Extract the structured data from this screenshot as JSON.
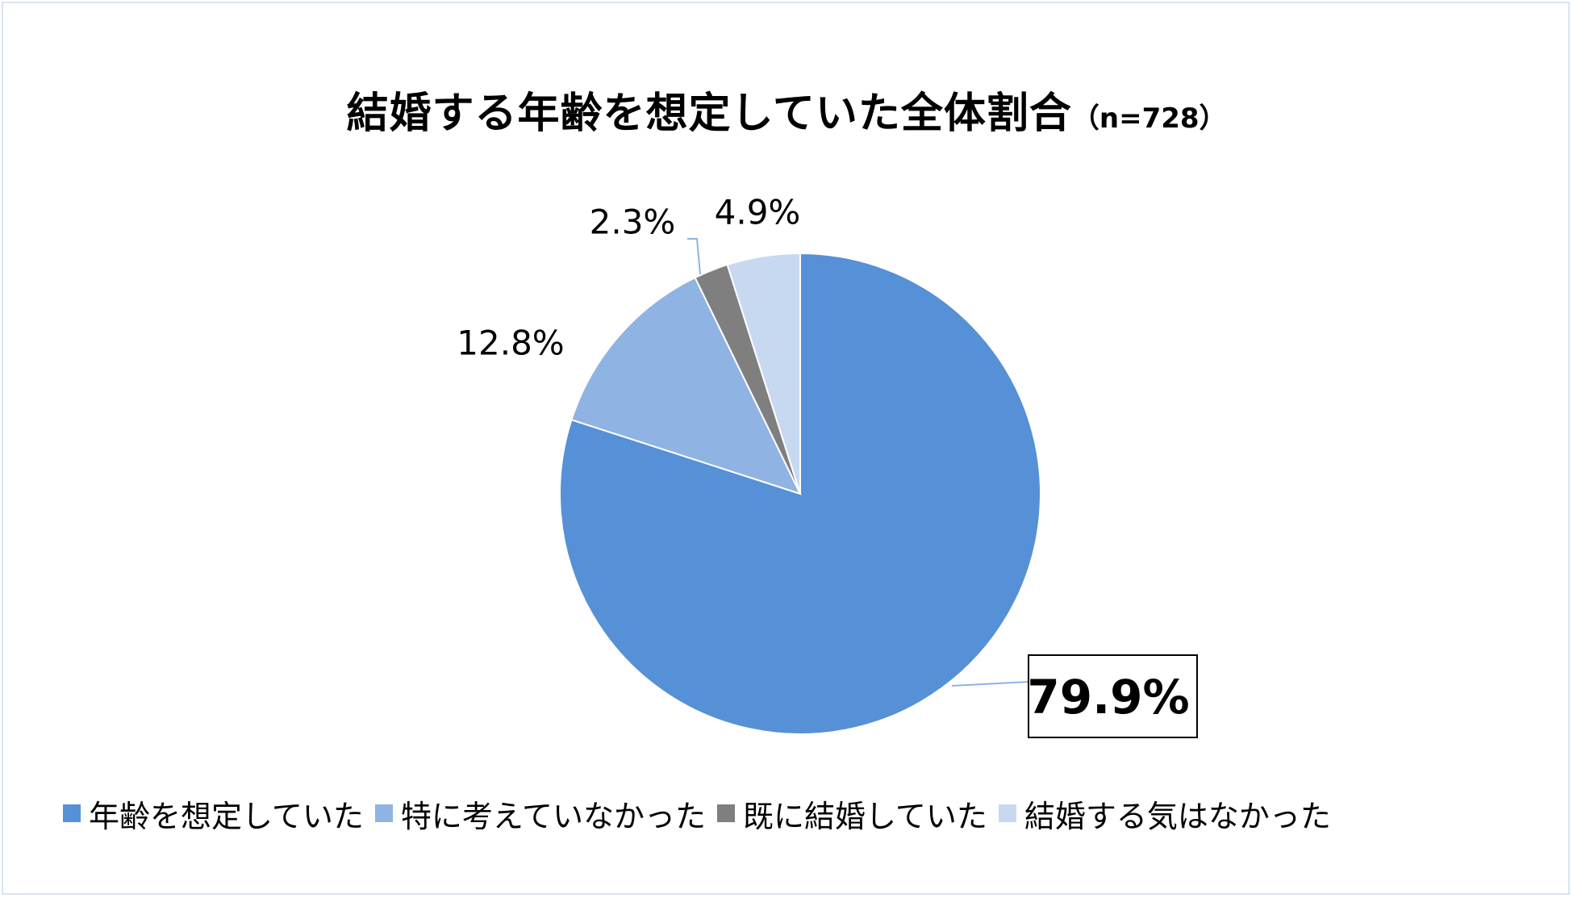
{
  "chart_data": {
    "type": "pie",
    "title": "結婚する年齢を想定していた全体割合",
    "subtitle": "（n=728）",
    "start_angle_deg": 0,
    "direction": "clockwise",
    "legend_position": "bottom",
    "slices": [
      {
        "label": "年齢を想定していた",
        "value": 79.9,
        "display": "79.9%",
        "color": "#5690d6",
        "highlight": true
      },
      {
        "label": "特に考えていなかった",
        "value": 12.8,
        "display": "12.8%",
        "color": "#8fb3e3",
        "highlight": false
      },
      {
        "label": "既に結婚していた",
        "value": 2.3,
        "display": "2.3%",
        "color": "#7f7f7f",
        "highlight": false
      },
      {
        "label": "結婚する気はなかった",
        "value": 4.9,
        "display": "4.9%",
        "color": "#c7d9f1",
        "highlight": false
      }
    ]
  }
}
